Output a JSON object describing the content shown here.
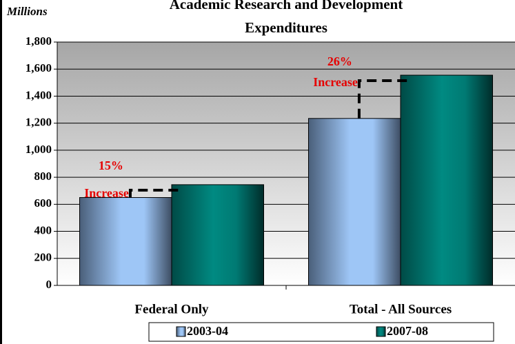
{
  "chart_data": {
    "type": "bar",
    "title": "Academic Research and Development Expenditures",
    "title_lines": [
      "Academic Research and Development",
      "Expenditures"
    ],
    "y_unit_label": "Millions",
    "categories": [
      "Federal Only",
      "Total - All Sources"
    ],
    "series": [
      {
        "name": "2003-04",
        "color": "#8fb9ee",
        "values": [
          650,
          1235
        ]
      },
      {
        "name": "2007-08",
        "color": "#007a73",
        "values": [
          745,
          1555
        ]
      }
    ],
    "annotations": [
      {
        "percent": "15%",
        "text": "Increase"
      },
      {
        "percent": "26%",
        "text": "Increase"
      }
    ],
    "ylim": [
      0,
      1800
    ],
    "yticks": [
      0,
      200,
      400,
      600,
      800,
      {
        "value": 1000,
        "label": "1,000"
      },
      {
        "value": 1200,
        "label": "1,200"
      },
      {
        "value": 1400,
        "label": "1,400"
      },
      {
        "value": 1600,
        "label": "1,600"
      },
      {
        "value": 1800,
        "label": "1,800"
      }
    ],
    "grid": true,
    "legend": "bottom"
  }
}
